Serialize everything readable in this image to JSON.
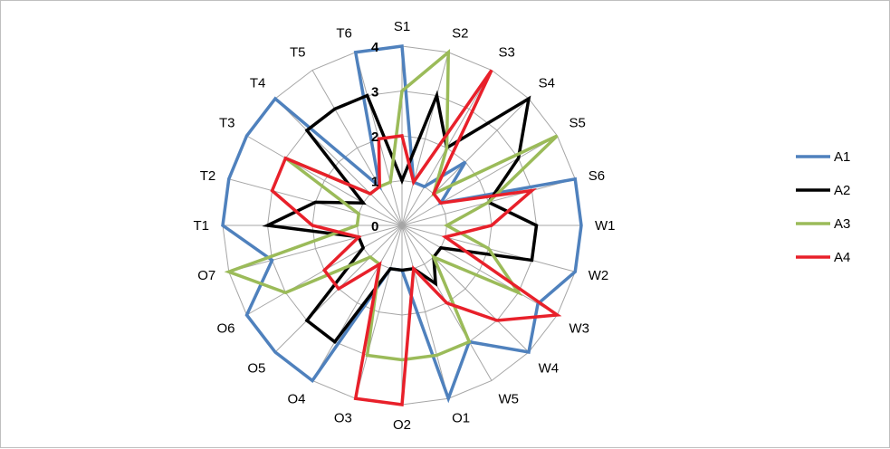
{
  "chart_data": {
    "type": "radar",
    "title": "",
    "categories": [
      "S1",
      "S2",
      "S3",
      "S4",
      "S5",
      "S6",
      "W1",
      "W2",
      "W3",
      "W4",
      "W5",
      "O1",
      "O2",
      "O3",
      "O4",
      "O5",
      "O6",
      "O7",
      "T1",
      "T2",
      "T3",
      "T4",
      "T5",
      "T6"
    ],
    "rlim": [
      0,
      4
    ],
    "ticks": [
      "0",
      "1",
      "2",
      "3",
      "4"
    ],
    "grid": true,
    "legend_position": "right",
    "series": [
      {
        "name": "A1",
        "color": "#4f81bd",
        "values": [
          4,
          1,
          1,
          2,
          1,
          4,
          4,
          4,
          3.5,
          4,
          3,
          4,
          1,
          1,
          4,
          4,
          4,
          3,
          4,
          4,
          4,
          4,
          1,
          4
        ]
      },
      {
        "name": "A2",
        "color": "#000000",
        "values": [
          1,
          3,
          2,
          4,
          3,
          2,
          3,
          3,
          1,
          1,
          1.5,
          1,
          1,
          1,
          3,
          3,
          1,
          1,
          3,
          2,
          1,
          3,
          3,
          3
        ]
      },
      {
        "name": "A3",
        "color": "#9bbb59",
        "values": [
          3,
          4,
          2,
          1,
          4,
          2,
          1,
          2,
          3,
          1,
          3,
          3,
          3,
          3,
          1,
          1,
          3,
          4,
          1,
          1,
          3,
          1,
          1,
          1
        ]
      },
      {
        "name": "A4",
        "color": "#e8202a",
        "values": [
          2,
          1,
          4,
          1,
          1,
          3,
          2,
          1,
          4,
          3,
          2,
          1,
          4,
          4,
          1,
          2,
          2,
          1,
          2,
          3,
          3,
          1,
          1,
          2
        ]
      }
    ]
  }
}
